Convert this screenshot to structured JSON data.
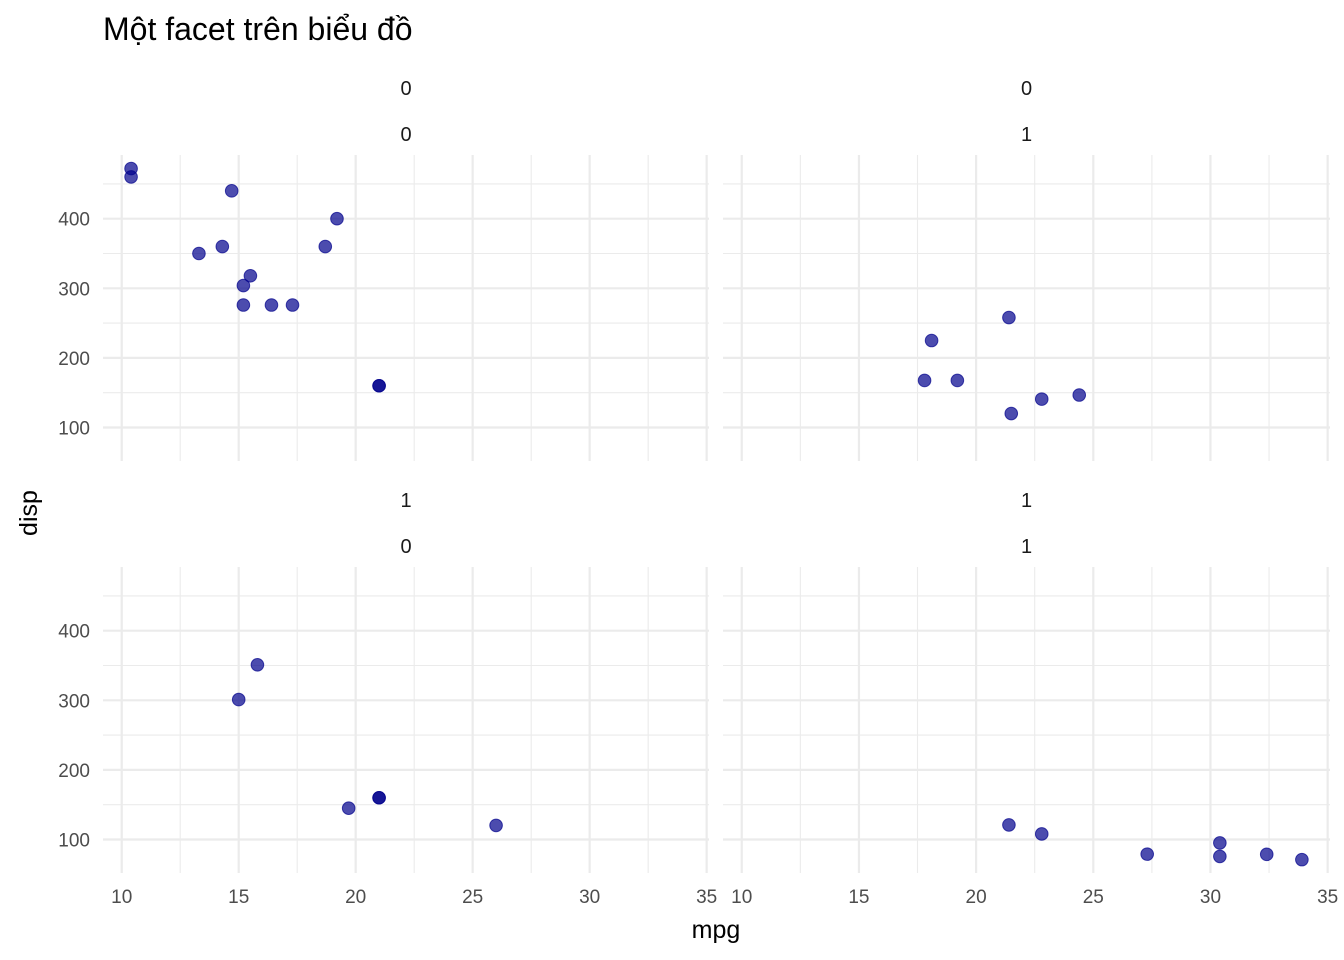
{
  "chart_data": {
    "type": "scatter",
    "title": "Một facet trên biểu đồ",
    "xlabel": "mpg",
    "ylabel": "disp",
    "xlim": [
      9.2,
      35.1
    ],
    "ylim": [
      51.9,
      491.5
    ],
    "x_ticks": [
      10,
      15,
      20,
      25,
      30,
      35
    ],
    "y_ticks": [
      100,
      200,
      300,
      400
    ],
    "grid": true,
    "point_color": "#00008b",
    "facets": [
      {
        "strip": [
          "0",
          "0"
        ],
        "points": [
          [
            21.0,
            160
          ],
          [
            21.0,
            160
          ],
          [
            18.7,
            360
          ],
          [
            19.2,
            400
          ],
          [
            14.7,
            440
          ],
          [
            10.4,
            472
          ],
          [
            10.4,
            460
          ],
          [
            13.3,
            350
          ],
          [
            14.3,
            360
          ],
          [
            15.2,
            304
          ],
          [
            15.5,
            318
          ],
          [
            15.2,
            276
          ],
          [
            16.4,
            276
          ],
          [
            17.3,
            276
          ]
        ]
      },
      {
        "strip": [
          "0",
          "1"
        ],
        "points": [
          [
            21.4,
            258
          ],
          [
            18.1,
            225
          ],
          [
            17.8,
            167.6
          ],
          [
            19.2,
            167.6
          ],
          [
            21.5,
            120.1
          ],
          [
            22.8,
            140.8
          ],
          [
            24.4,
            146.7
          ]
        ]
      },
      {
        "strip": [
          "1",
          "0"
        ],
        "points": [
          [
            21.0,
            160
          ],
          [
            21.0,
            160
          ],
          [
            15.8,
            351
          ],
          [
            15.0,
            301
          ],
          [
            19.7,
            145
          ],
          [
            26.0,
            120.3
          ]
        ]
      },
      {
        "strip": [
          "1",
          "1"
        ],
        "points": [
          [
            21.4,
            121
          ],
          [
            22.8,
            108
          ],
          [
            27.3,
            79
          ],
          [
            30.4,
            95.1
          ],
          [
            30.4,
            75.7
          ],
          [
            32.4,
            78.7
          ],
          [
            33.9,
            71.1
          ]
        ]
      }
    ]
  }
}
